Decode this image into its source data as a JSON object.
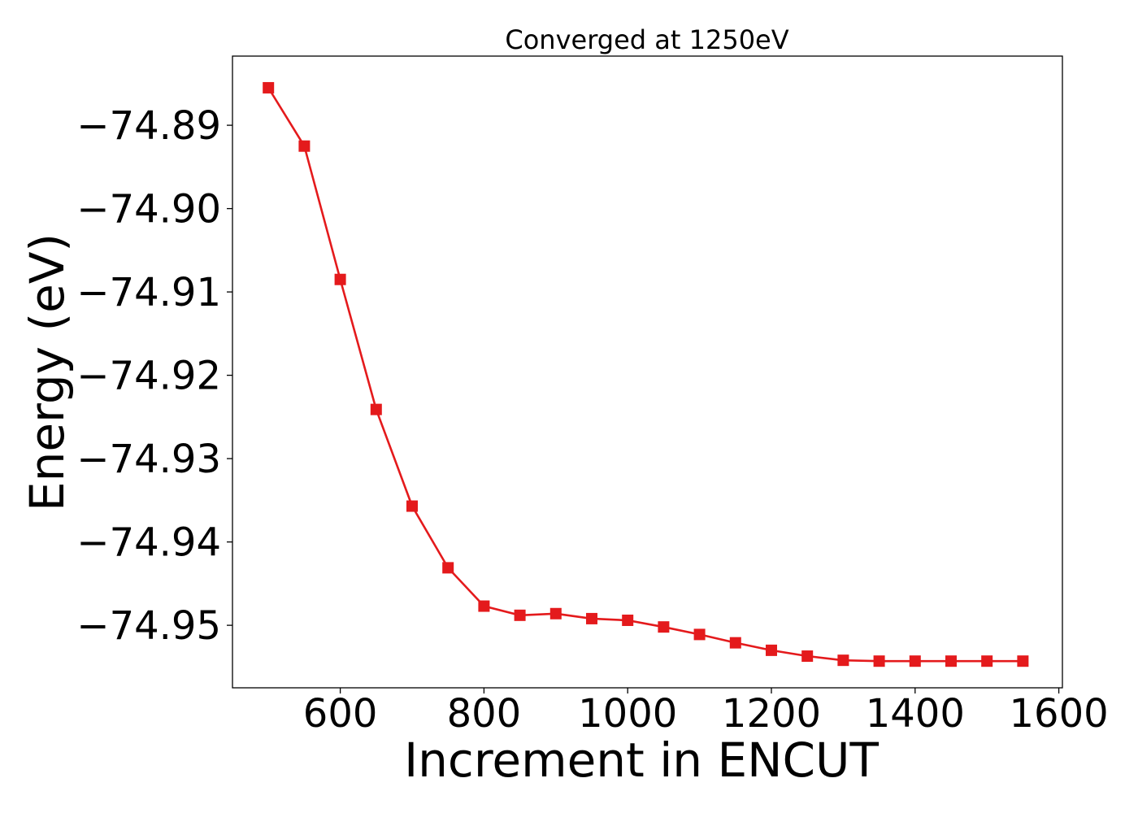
{
  "chart_data": {
    "type": "line",
    "title": "Converged at 1250eV",
    "xlabel": "Increment in ENCUT",
    "ylabel": "Energy (eV)",
    "xlim": [
      450,
      1605
    ],
    "ylim": [
      -74.9575,
      -74.8817
    ],
    "x_ticks": [
      600,
      800,
      1000,
      1200,
      1400,
      1600
    ],
    "x_tick_labels": [
      "600",
      "800",
      "1000",
      "1200",
      "1400",
      "1600"
    ],
    "y_ticks": [
      -74.89,
      -74.9,
      -74.91,
      -74.92,
      -74.93,
      -74.94,
      -74.95
    ],
    "y_tick_labels": [
      "−74.89",
      "−74.90",
      "−74.91",
      "−74.92",
      "−74.93",
      "−74.94",
      "−74.95"
    ],
    "grid": false,
    "legend": "none",
    "marker": "square",
    "color": "#e41a1c",
    "series": [
      {
        "x": [
          500,
          550,
          600,
          650,
          700,
          750,
          800,
          850,
          900,
          950,
          1000,
          1050,
          1100,
          1150,
          1200,
          1250,
          1300,
          1350,
          1400,
          1450,
          1500,
          1550
        ],
        "values": [
          -74.8855,
          -74.8925,
          -74.9085,
          -74.9241,
          -74.9357,
          -74.9431,
          -74.9477,
          -74.9488,
          -74.9486,
          -74.9492,
          -74.9494,
          -74.9502,
          -74.9511,
          -74.9521,
          -74.953,
          -74.9537,
          -74.9542,
          -74.9543,
          -74.9543,
          -74.9543,
          -74.9543,
          -74.9543
        ]
      }
    ]
  }
}
